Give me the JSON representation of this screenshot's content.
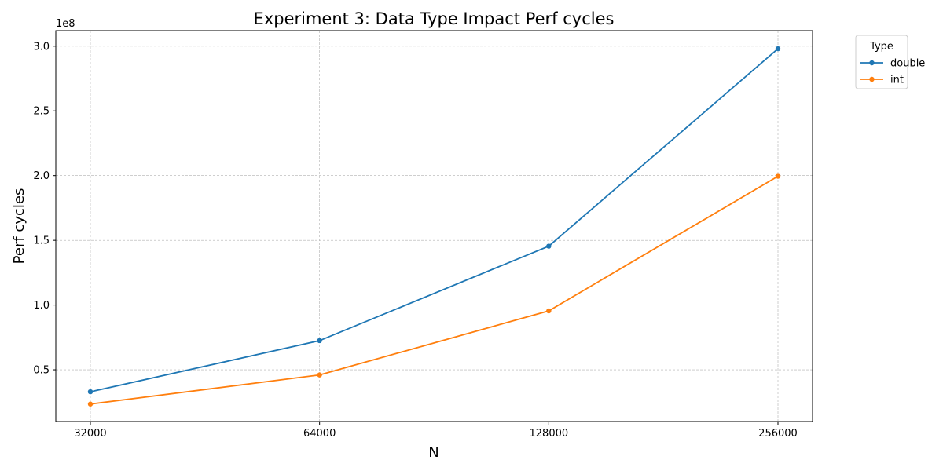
{
  "chart_data": {
    "type": "line",
    "title": "Experiment 3: Data Type Impact Perf cycles",
    "xlabel": "N",
    "ylabel": "Perf cycles",
    "x": [
      32000,
      64000,
      128000,
      256000
    ],
    "x_tick_labels": [
      "32000",
      "64000",
      "128000",
      "256000"
    ],
    "x_scale": "log",
    "y_ticks": [
      50000000.0,
      100000000.0,
      150000000.0,
      200000000.0,
      250000000.0,
      300000000.0
    ],
    "y_tick_labels": [
      "0.5",
      "1.0",
      "1.5",
      "2.0",
      "2.5",
      "3.0"
    ],
    "y_offset_label": "1e8",
    "ylim": [
      10000000,
      312000000
    ],
    "grid": true,
    "legend": {
      "title": "Type",
      "placement": "upper-right-outside"
    },
    "series": [
      {
        "name": "double",
        "color": "#1f77b4",
        "values": [
          33000000,
          72500000,
          145500000,
          298000000
        ]
      },
      {
        "name": "int",
        "color": "#ff7f0e",
        "values": [
          23500000,
          46000000,
          95500000,
          199500000
        ]
      }
    ]
  }
}
